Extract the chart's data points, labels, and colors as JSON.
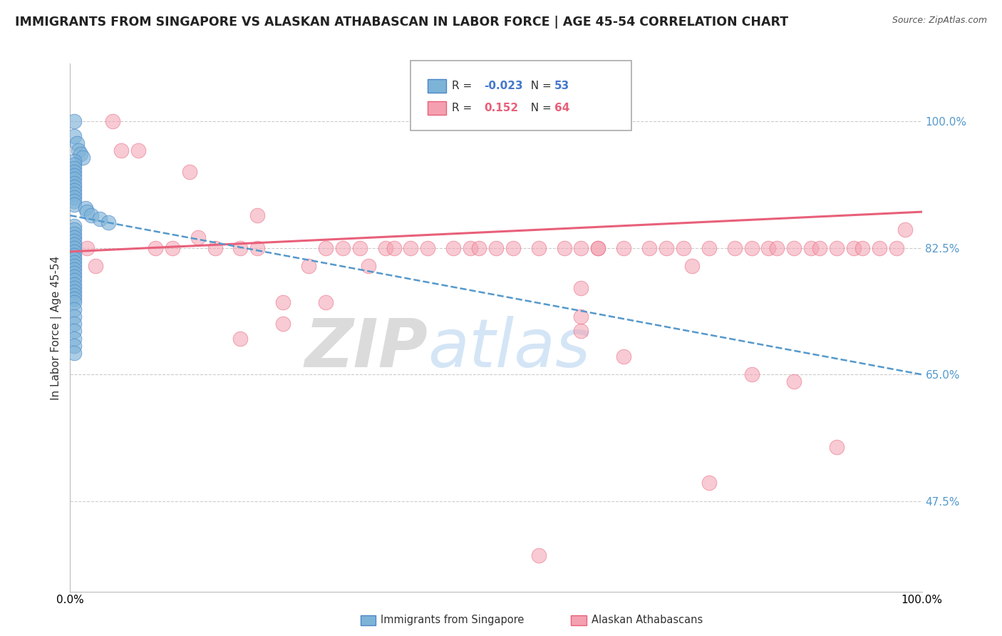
{
  "title": "IMMIGRANTS FROM SINGAPORE VS ALASKAN ATHABASCAN IN LABOR FORCE | AGE 45-54 CORRELATION CHART",
  "source": "Source: ZipAtlas.com",
  "ylabel": "In Labor Force | Age 45-54",
  "xlim": [
    0.0,
    100.0
  ],
  "ylim": [
    35.0,
    108.0
  ],
  "yticks": [
    47.5,
    65.0,
    82.5,
    100.0
  ],
  "ytick_labels": [
    "47.5%",
    "65.0%",
    "82.5%",
    "100.0%"
  ],
  "xtick_labels": [
    "0.0%",
    "100.0%"
  ],
  "blue_color": "#7EB3D8",
  "blue_edge_color": "#4A86C8",
  "pink_color": "#F4A0B0",
  "pink_edge_color": "#E8607A",
  "blue_line_color": "#5599CC",
  "pink_line_color": "#E8607A",
  "watermark_zip": "ZIP",
  "watermark_atlas": "atlas",
  "blue_scatter_x": [
    0.5,
    0.5,
    0.8,
    1.0,
    1.2,
    1.5,
    0.5,
    0.5,
    0.5,
    0.5,
    0.5,
    0.5,
    0.5,
    0.5,
    0.5,
    0.5,
    0.5,
    0.5,
    0.5,
    1.8,
    2.0,
    2.5,
    3.5,
    4.5,
    0.5,
    0.5,
    0.5,
    0.5,
    0.5,
    0.5,
    0.5,
    0.5,
    0.5,
    0.5,
    0.5,
    0.5,
    0.5,
    0.5,
    0.5,
    0.5,
    0.5,
    0.5,
    0.5,
    0.5,
    0.5,
    0.5,
    0.5,
    0.5,
    0.5,
    0.5,
    0.5,
    0.5,
    0.5
  ],
  "blue_scatter_y": [
    100.0,
    98.0,
    97.0,
    96.0,
    95.5,
    95.0,
    94.5,
    94.0,
    93.5,
    93.0,
    92.5,
    92.0,
    91.5,
    91.0,
    90.5,
    90.0,
    89.5,
    89.0,
    88.5,
    88.0,
    87.5,
    87.0,
    86.5,
    86.0,
    85.5,
    85.0,
    84.5,
    84.0,
    83.5,
    83.0,
    82.5,
    82.0,
    81.5,
    81.0,
    80.5,
    80.0,
    79.5,
    79.0,
    78.5,
    78.0,
    77.5,
    77.0,
    76.5,
    76.0,
    75.5,
    75.0,
    74.0,
    73.0,
    72.0,
    71.0,
    70.0,
    69.0,
    68.0
  ],
  "pink_scatter_x": [
    2.0,
    3.0,
    5.0,
    6.0,
    8.0,
    10.0,
    12.0,
    14.0,
    15.0,
    17.0,
    20.0,
    22.0,
    22.0,
    25.0,
    28.0,
    30.0,
    32.0,
    34.0,
    35.0,
    37.0,
    38.0,
    40.0,
    42.0,
    45.0,
    47.0,
    48.0,
    50.0,
    52.0,
    55.0,
    58.0,
    60.0,
    62.0,
    62.0,
    65.0,
    68.0,
    70.0,
    72.0,
    73.0,
    75.0,
    78.0,
    80.0,
    82.0,
    83.0,
    85.0,
    87.0,
    88.0,
    90.0,
    92.0,
    93.0,
    95.0,
    97.0,
    98.0,
    20.0,
    25.0,
    30.0,
    60.0,
    60.0,
    60.0,
    65.0,
    80.0,
    85.0,
    90.0,
    75.0,
    55.0
  ],
  "pink_scatter_y": [
    82.5,
    80.0,
    100.0,
    96.0,
    96.0,
    82.5,
    82.5,
    93.0,
    84.0,
    82.5,
    82.5,
    82.5,
    87.0,
    75.0,
    80.0,
    82.5,
    82.5,
    82.5,
    80.0,
    82.5,
    82.5,
    82.5,
    82.5,
    82.5,
    82.5,
    82.5,
    82.5,
    82.5,
    82.5,
    82.5,
    82.5,
    82.5,
    82.5,
    82.5,
    82.5,
    82.5,
    82.5,
    80.0,
    82.5,
    82.5,
    82.5,
    82.5,
    82.5,
    82.5,
    82.5,
    82.5,
    82.5,
    82.5,
    82.5,
    82.5,
    82.5,
    85.0,
    70.0,
    72.0,
    75.0,
    77.0,
    71.0,
    73.0,
    67.5,
    65.0,
    64.0,
    55.0,
    50.0,
    40.0
  ]
}
